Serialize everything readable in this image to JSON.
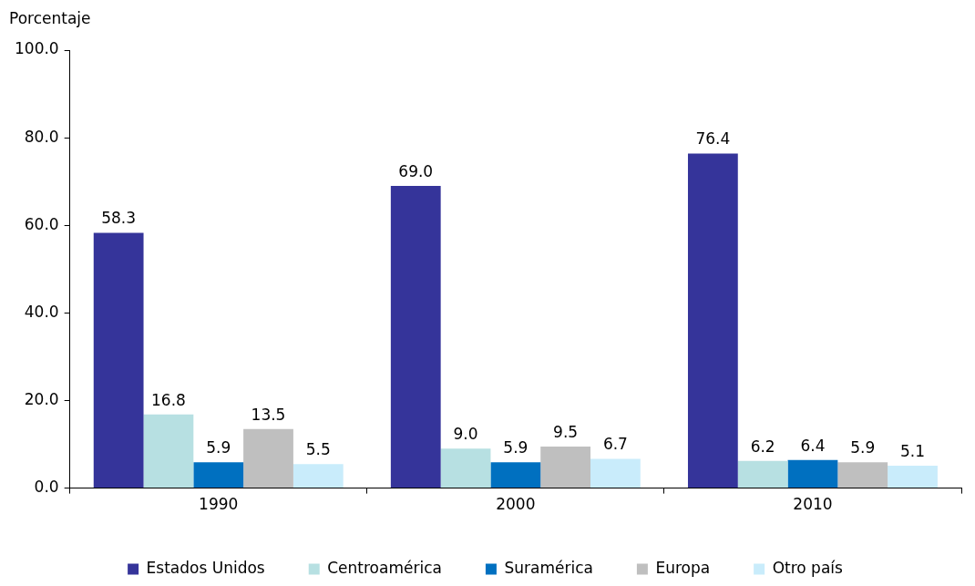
{
  "chart_data": {
    "type": "bar",
    "ylabel": "Porcentaje",
    "categories": [
      "1990",
      "2000",
      "2010"
    ],
    "series": [
      {
        "name": "Estados Unidos",
        "color": "#35349a",
        "values": [
          58.3,
          69.0,
          76.4
        ],
        "value_labels": [
          "58.3",
          "69.0",
          "76.4"
        ]
      },
      {
        "name": "Centroamérica",
        "color": "#b7e0e2",
        "values": [
          16.8,
          9.0,
          6.2
        ],
        "value_labels": [
          "16.8",
          "9.0",
          "6.2"
        ]
      },
      {
        "name": "Suramérica",
        "color": "#0070c0",
        "values": [
          5.9,
          5.9,
          6.4
        ],
        "value_labels": [
          "5.9",
          "5.9",
          "6.4"
        ]
      },
      {
        "name": "Europa",
        "color": "#bfbfbf",
        "values": [
          13.5,
          9.5,
          5.9
        ],
        "value_labels": [
          "13.5",
          "9.5",
          "5.9"
        ]
      },
      {
        "name": "Otro país",
        "color": "#c9ecfb",
        "values": [
          5.5,
          6.7,
          5.1
        ],
        "value_labels": [
          "5.5",
          "6.7",
          "5.1"
        ]
      }
    ],
    "ylim": [
      0,
      100
    ],
    "yticks": [
      {
        "value": 0,
        "label": "0.0"
      },
      {
        "value": 20,
        "label": "20.0"
      },
      {
        "value": 40,
        "label": "40.0"
      },
      {
        "value": 60,
        "label": "60.0"
      },
      {
        "value": 80,
        "label": "80.0"
      },
      {
        "value": 100,
        "label": "100.0"
      }
    ],
    "grid": false,
    "legend": "bottom"
  }
}
